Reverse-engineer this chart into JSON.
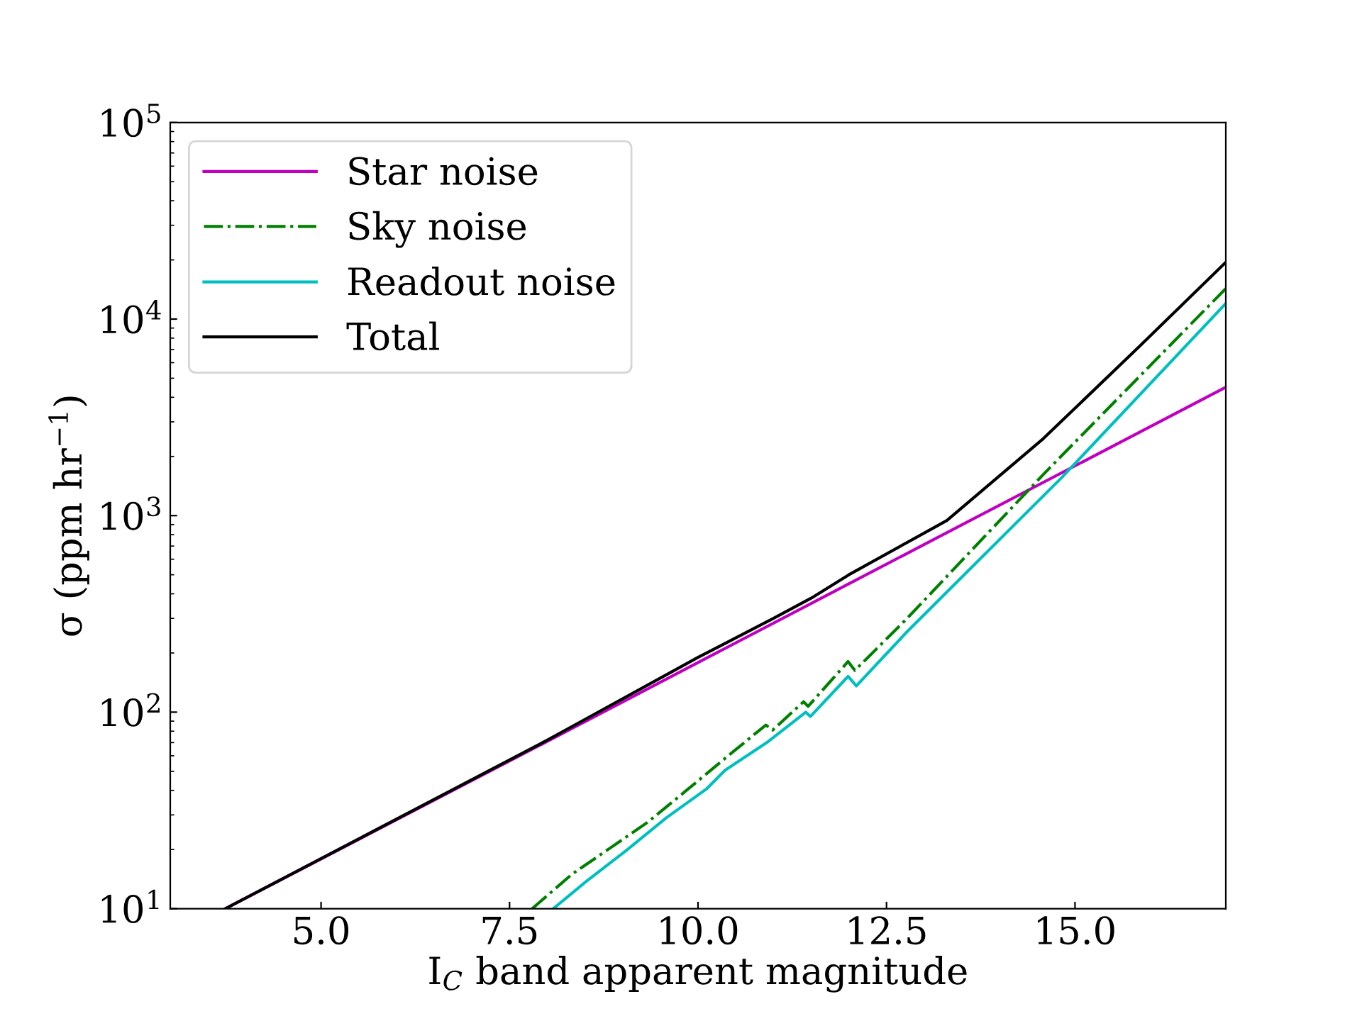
{
  "chart_data": {
    "type": "line",
    "xlabel": "I$_{C}$ band apparent magnitude",
    "ylabel": "σ (ppm hr$^{−1}$)",
    "xlim": [
      3,
      17
    ],
    "xticks": [
      {
        "value": 5,
        "label": "5.0"
      },
      {
        "value": 7.5,
        "label": "7.5"
      },
      {
        "value": 10,
        "label": "10.0"
      },
      {
        "value": 12.5,
        "label": "12.5"
      },
      {
        "value": 15,
        "label": "15.0"
      }
    ],
    "ylim": [
      10,
      100000
    ],
    "yticks": [
      {
        "value": 10,
        "label": "10$^{1}$"
      },
      {
        "value": 100,
        "label": "10$^{2}$"
      },
      {
        "value": 1000,
        "label": "10$^{3}$"
      },
      {
        "value": 10000,
        "label": "10$^{4}$"
      },
      {
        "value": 100000,
        "label": "10$^{5}$"
      }
    ],
    "log": "y",
    "grid": false,
    "legend": "top left",
    "marker": "none",
    "series": [
      {
        "name": "Star noise",
        "color": "#bf00bf",
        "line_style": "solid",
        "x": [
          3.73,
          8,
          12,
          17
        ],
        "values": [
          10,
          71,
          450,
          4500
        ]
      },
      {
        "name": "Sky noise",
        "color": "#008000",
        "line_style": "dashdot",
        "x": [
          7.8,
          8.33,
          8.83,
          9.33,
          9.83,
          10.4,
          10.9,
          10.99,
          11.4,
          11.46,
          11.99,
          12.08,
          12.77,
          14.58,
          17
        ],
        "values": [
          10,
          15,
          20.3,
          27.5,
          39.5,
          60,
          86,
          81,
          113,
          107,
          181,
          163,
          299,
          1620,
          14300
        ]
      },
      {
        "name": "Readout noise",
        "color": "#00bfbf",
        "line_style": "solid",
        "x": [
          8.08,
          8.52,
          9.05,
          9.58,
          10.11,
          10.36,
          10.93,
          11.43,
          11.49,
          11.99,
          12.1,
          12.77,
          14.83,
          17
        ],
        "values": [
          10,
          13.8,
          19.8,
          29,
          40.6,
          50.7,
          70.8,
          100,
          95,
          152,
          136,
          256,
          1570,
          12000
        ]
      },
      {
        "name": "Total",
        "color": "#000000",
        "line_style": "solid",
        "x": [
          3.73,
          8,
          10,
          11,
          11.5,
          12,
          13.3,
          14.58,
          15.85,
          17
        ],
        "values": [
          10,
          72,
          190,
          300,
          380,
          500,
          944,
          2466,
          7230,
          19450
        ]
      }
    ]
  }
}
